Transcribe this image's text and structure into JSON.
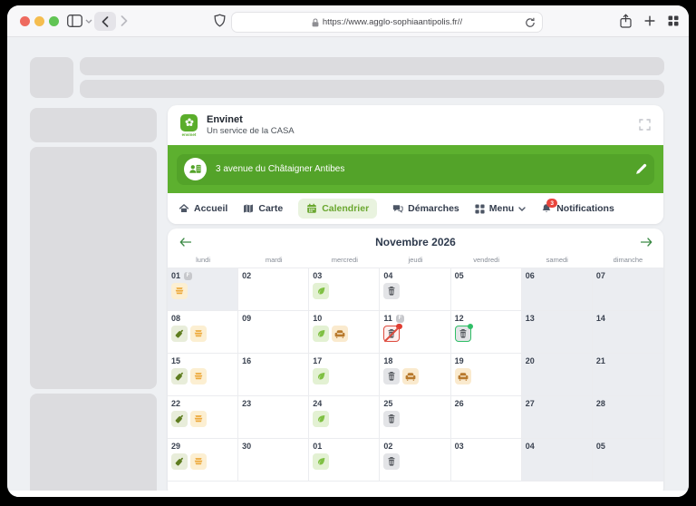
{
  "browser": {
    "url": "https://www.agglo-sophiaantipolis.fr//"
  },
  "app": {
    "logo_text": "envinet",
    "title": "Envinet",
    "subtitle": "Un service de la CASA",
    "address": "3 avenue du Châtaigner Antibes"
  },
  "nav": {
    "items": [
      {
        "id": "accueil",
        "label": "Accueil",
        "icon": "home-icon",
        "active": false
      },
      {
        "id": "carte",
        "label": "Carte",
        "icon": "map-icon",
        "active": false
      },
      {
        "id": "calendrier",
        "label": "Calendrier",
        "icon": "calendar-icon",
        "active": true
      },
      {
        "id": "demarches",
        "label": "Démarches",
        "icon": "chat-icon",
        "active": false
      },
      {
        "id": "menu",
        "label": "Menu",
        "icon": "grid-icon",
        "active": false,
        "chevron": true
      },
      {
        "id": "notifications",
        "label": "Notifications",
        "icon": "bell-icon",
        "active": false,
        "badge": "3"
      }
    ]
  },
  "calendar": {
    "title": "Novembre 2026",
    "weekdays": [
      "lundi",
      "mardi",
      "mercredi",
      "jeudi",
      "vendredi",
      "samedi",
      "dimanche"
    ],
    "weeks": [
      [
        {
          "day": "01",
          "badge": "F",
          "muted": true,
          "icons": [
            "packaging"
          ]
        },
        {
          "day": "02",
          "icons": []
        },
        {
          "day": "03",
          "icons": [
            "leaf"
          ]
        },
        {
          "day": "04",
          "icons": [
            "trash"
          ]
        },
        {
          "day": "05",
          "icons": []
        },
        {
          "day": "06",
          "muted": true,
          "icons": []
        },
        {
          "day": "07",
          "muted": true,
          "icons": []
        }
      ],
      [
        {
          "day": "08",
          "icons": [
            "glass",
            "packaging"
          ]
        },
        {
          "day": "09",
          "icons": []
        },
        {
          "day": "10",
          "icons": [
            "leaf",
            "bulky"
          ]
        },
        {
          "day": "11",
          "badge": "F",
          "icons": [
            "trash-cancelled"
          ]
        },
        {
          "day": "12",
          "icons": [
            "trash-rescheduled"
          ]
        },
        {
          "day": "13",
          "muted": true,
          "icons": []
        },
        {
          "day": "14",
          "muted": true,
          "icons": []
        }
      ],
      [
        {
          "day": "15",
          "icons": [
            "glass",
            "packaging"
          ]
        },
        {
          "day": "16",
          "icons": []
        },
        {
          "day": "17",
          "icons": [
            "leaf"
          ]
        },
        {
          "day": "18",
          "icons": [
            "trash",
            "bulky"
          ]
        },
        {
          "day": "19",
          "icons": [
            "bulky"
          ]
        },
        {
          "day": "20",
          "muted": true,
          "icons": []
        },
        {
          "day": "21",
          "muted": true,
          "icons": []
        }
      ],
      [
        {
          "day": "22",
          "icons": [
            "glass",
            "packaging"
          ]
        },
        {
          "day": "23",
          "icons": []
        },
        {
          "day": "24",
          "icons": [
            "leaf"
          ]
        },
        {
          "day": "25",
          "icons": [
            "trash"
          ]
        },
        {
          "day": "26",
          "icons": []
        },
        {
          "day": "27",
          "muted": true,
          "icons": []
        },
        {
          "day": "28",
          "muted": true,
          "icons": []
        }
      ],
      [
        {
          "day": "29",
          "icons": [
            "glass",
            "packaging"
          ]
        },
        {
          "day": "30",
          "icons": []
        },
        {
          "day": "01",
          "icons": [
            "leaf"
          ]
        },
        {
          "day": "02",
          "icons": [
            "trash"
          ]
        },
        {
          "day": "03",
          "icons": []
        },
        {
          "day": "04",
          "muted": true,
          "icons": []
        },
        {
          "day": "05",
          "muted": true,
          "icons": []
        }
      ]
    ]
  },
  "colors": {
    "brand_green": "#5db02f",
    "banner_inner_green": "#53a329",
    "active_tab_bg": "#e9f3df",
    "active_tab_text": "#6aa72f",
    "notification_badge_red": "#e8453c",
    "cancelled_red": "#dd4b3e",
    "rescheduled_green": "#2fbe66"
  }
}
